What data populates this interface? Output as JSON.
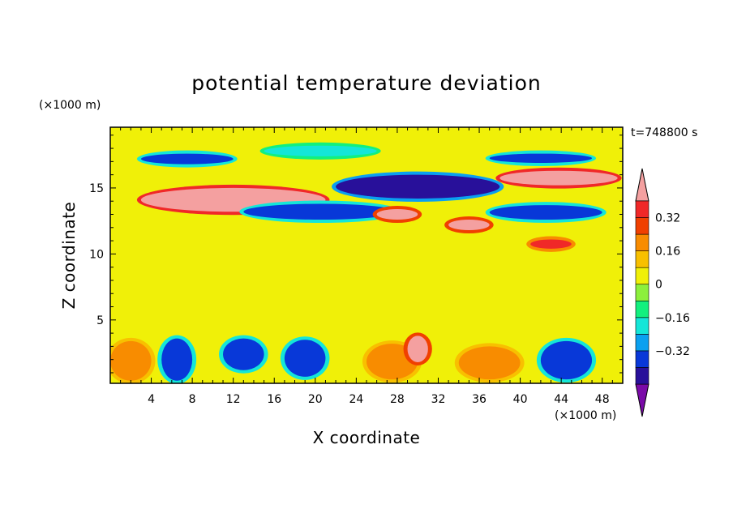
{
  "chart_data": {
    "type": "heatmap",
    "title": "potential temperature deviation",
    "xlabel": "X coordinate",
    "ylabel": "Z coordinate",
    "x_unit": "(×1000 m)",
    "y_unit": "(×1000 m)",
    "time_label": "t=748800 s",
    "x_ticks": [
      4,
      8,
      12,
      16,
      20,
      24,
      28,
      32,
      36,
      40,
      44,
      48
    ],
    "y_ticks": [
      5,
      10,
      15
    ],
    "xlim": [
      0,
      50
    ],
    "ylim": [
      0.2,
      19.6
    ],
    "colorbar": {
      "levels": [
        -0.48,
        -0.4,
        -0.32,
        -0.24,
        -0.16,
        -0.08,
        0,
        0.08,
        0.16,
        0.24,
        0.32,
        0.4
      ],
      "labels": [
        "0.32",
        "0.16",
        "0",
        "−0.16",
        "−0.32"
      ],
      "label_values": [
        0.32,
        0.16,
        0,
        -0.16,
        -0.32
      ],
      "colors": [
        "#7a0aa8",
        "#28109a",
        "#0838d8",
        "#0aa0f0",
        "#14e6d8",
        "#12f07e",
        "#8cf03c",
        "#f0f008",
        "#f8c000",
        "#f88c00",
        "#f04000",
        "#f02828",
        "#f4a0a0"
      ]
    },
    "background_value": 0.04,
    "regions": [
      {
        "desc": "upper blue streak left",
        "x": [
          3,
          12
        ],
        "z": [
          16.8,
          17.6
        ],
        "v": -0.34
      },
      {
        "desc": "upper blue streak center-left",
        "x": [
          15,
          26
        ],
        "z": [
          17.4,
          18.2
        ],
        "v": -0.2
      },
      {
        "desc": "upper blue streak right",
        "x": [
          37,
          47
        ],
        "z": [
          16.9,
          17.6
        ],
        "v": -0.34
      },
      {
        "desc": "pink band left",
        "x": [
          3,
          21
        ],
        "z": [
          13.2,
          15.0
        ],
        "v": 0.45
      },
      {
        "desc": "purple core center",
        "x": [
          22,
          38
        ],
        "z": [
          14.2,
          16.0
        ],
        "v": -0.45
      },
      {
        "desc": "pink band right",
        "x": [
          38,
          49.5
        ],
        "z": [
          15.2,
          16.3
        ],
        "v": 0.45
      },
      {
        "desc": "dark blue band center",
        "x": [
          13,
          28
        ],
        "z": [
          12.6,
          13.8
        ],
        "v": -0.38
      },
      {
        "desc": "dark blue band right",
        "x": [
          37,
          48
        ],
        "z": [
          12.6,
          13.7
        ],
        "v": -0.38
      },
      {
        "desc": "pink patch",
        "x": [
          26,
          30
        ],
        "z": [
          12.6,
          13.4
        ],
        "v": 0.42
      },
      {
        "desc": "pink patch",
        "x": [
          33,
          37
        ],
        "z": [
          11.8,
          12.6
        ],
        "v": 0.42
      },
      {
        "desc": "red patch right",
        "x": [
          41,
          45
        ],
        "z": [
          10.4,
          11.1
        ],
        "v": 0.33
      },
      {
        "desc": "lower blue blobs",
        "x": [
          5,
          8
        ],
        "z": [
          0.4,
          3.6
        ],
        "v": -0.38
      },
      {
        "desc": "lower blue blobs",
        "x": [
          11,
          15
        ],
        "z": [
          1.2,
          3.6
        ],
        "v": -0.36
      },
      {
        "desc": "lower blue blobs",
        "x": [
          17,
          21
        ],
        "z": [
          0.7,
          3.5
        ],
        "v": -0.38
      },
      {
        "desc": "lower blue blobs",
        "x": [
          42,
          47
        ],
        "z": [
          0.5,
          3.4
        ],
        "v": -0.38
      },
      {
        "desc": "lower orange blob",
        "x": [
          25,
          30
        ],
        "z": [
          0.5,
          3.2
        ],
        "v": 0.22
      },
      {
        "desc": "lower pink spike",
        "x": [
          29,
          31
        ],
        "z": [
          1.8,
          3.8
        ],
        "v": 0.42
      },
      {
        "desc": "lower orange blob",
        "x": [
          34,
          40
        ],
        "z": [
          0.5,
          3.0
        ],
        "v": 0.2
      },
      {
        "desc": "lower orange left edge",
        "x": [
          0,
          4
        ],
        "z": [
          0.4,
          3.4
        ],
        "v": 0.22
      }
    ]
  }
}
